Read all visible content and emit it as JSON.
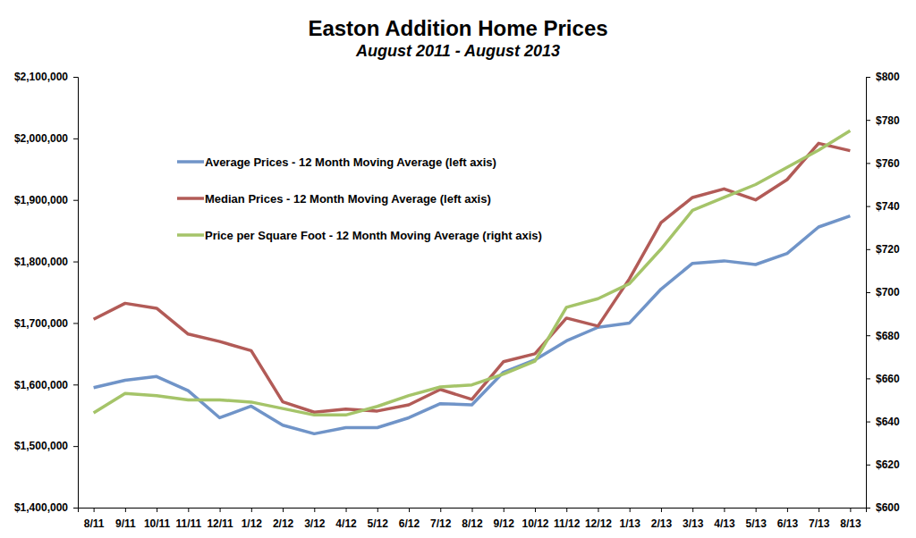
{
  "chart_data": {
    "type": "line",
    "title": "Easton Addition Home Prices",
    "subtitle": "August 2011 - August 2013",
    "categories": [
      "8/11",
      "9/11",
      "10/11",
      "11/11",
      "12/11",
      "1/12",
      "2/12",
      "3/12",
      "4/12",
      "5/12",
      "6/12",
      "7/12",
      "8/12",
      "9/12",
      "10/12",
      "11/12",
      "12/12",
      "1/13",
      "2/13",
      "3/13",
      "4/13",
      "5/13",
      "6/13",
      "7/13",
      "8/13"
    ],
    "series": [
      {
        "name": "Average Prices - 12 Month Moving Average (left axis)",
        "color": "#7094c8",
        "axis": "y",
        "line_style": "solid",
        "values": [
          1595000,
          1607000,
          1613000,
          1590000,
          1546000,
          1565000,
          1534000,
          1520000,
          1530000,
          1530000,
          1546000,
          1569000,
          1567000,
          1620000,
          1640000,
          1671000,
          1693000,
          1700000,
          1755000,
          1797000,
          1801000,
          1795000,
          1813000,
          1856000,
          1874000
        ]
      },
      {
        "name": "Median Prices - 12 Month Moving Average (left axis)",
        "color": "#b25b57",
        "axis": "y",
        "line_style": "solid",
        "values": [
          1706000,
          1732000,
          1724000,
          1682000,
          1670000,
          1655000,
          1572000,
          1555000,
          1560000,
          1557000,
          1567000,
          1592000,
          1576000,
          1637000,
          1650000,
          1708000,
          1695000,
          1772000,
          1863000,
          1904000,
          1918000,
          1900000,
          1933000,
          1992000,
          1980000
        ]
      },
      {
        "name": "Price per Square Foot - 12 Month Moving Average (right axis)",
        "color": "#a5c469",
        "axis": "y2",
        "line_style": "solid",
        "values": [
          644,
          653,
          652,
          650,
          650,
          649,
          646,
          643,
          643,
          647,
          652,
          656,
          657,
          662,
          668,
          693,
          697,
          704,
          720,
          738,
          744,
          750,
          758,
          766,
          775
        ]
      }
    ],
    "ylim": [
      1400000,
      2100000
    ],
    "yticks": [
      {
        "value": 1400000,
        "label": "$1,400,000"
      },
      {
        "value": 1500000,
        "label": "$1,500,000"
      },
      {
        "value": 1600000,
        "label": "$1,600,000"
      },
      {
        "value": 1700000,
        "label": "$1,700,000"
      },
      {
        "value": 1800000,
        "label": "$1,800,000"
      },
      {
        "value": 1900000,
        "label": "$1,900,000"
      },
      {
        "value": 2000000,
        "label": "$2,000,000"
      },
      {
        "value": 2100000,
        "label": "$2,100,000"
      }
    ],
    "y2lim": [
      600,
      800
    ],
    "y2ticks": [
      {
        "value": 600,
        "label": "$600"
      },
      {
        "value": 620,
        "label": "$620"
      },
      {
        "value": 640,
        "label": "$640"
      },
      {
        "value": 660,
        "label": "$660"
      },
      {
        "value": 680,
        "label": "$680"
      },
      {
        "value": 700,
        "label": "$700"
      },
      {
        "value": 720,
        "label": "$720"
      },
      {
        "value": 740,
        "label": "$740"
      },
      {
        "value": 760,
        "label": "$760"
      },
      {
        "value": 780,
        "label": "$780"
      },
      {
        "value": 800,
        "label": "$800"
      }
    ],
    "grid": false,
    "legend": "upper left"
  }
}
